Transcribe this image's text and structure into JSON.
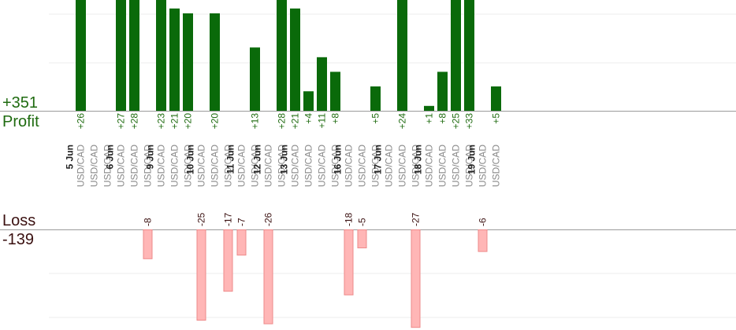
{
  "chart_data": {
    "type": "bar",
    "profit_total": "+351",
    "profit_label": "Profit",
    "loss_label": "Loss",
    "loss_total": "-139",
    "colors": {
      "profit": "#0a6a0a",
      "loss": "#ffb6b6",
      "loss_edge": "#ee8a8a",
      "profit_text": "#1f6b10",
      "loss_text": "#3a1010",
      "axis_text_date": "#222222",
      "axis_text_pair": "#888888"
    },
    "trades": [
      {
        "date": "5 Jun",
        "pair": "USD/CAD",
        "profit": 26
      },
      {
        "date": "",
        "pair": "USD/CAD",
        "profit": null
      },
      {
        "date": "",
        "pair": "USD/CAD",
        "profit": null
      },
      {
        "date": "6 Jun",
        "pair": "USD/CAD",
        "profit": 27
      },
      {
        "date": "",
        "pair": "USD/CAD",
        "profit": 28
      },
      {
        "date": "",
        "pair": "USD/CAD",
        "loss": -8
      },
      {
        "date": "9 Jun",
        "pair": "USD/CAD",
        "profit": 23
      },
      {
        "date": "",
        "pair": "USD/CAD",
        "profit": 21
      },
      {
        "date": "",
        "pair": "USD/CAD",
        "profit": 20
      },
      {
        "date": "10 Jun",
        "pair": "USD/CAD",
        "loss": -25
      },
      {
        "date": "",
        "pair": "USD/CAD",
        "profit": 20
      },
      {
        "date": "",
        "pair": "USD/CAD",
        "loss": -17
      },
      {
        "date": "11 Jun",
        "pair": "USD/CAD",
        "loss": -7
      },
      {
        "date": "",
        "pair": "USD/CAD",
        "profit": 13
      },
      {
        "date": "12 Jun",
        "pair": "USD/CAD",
        "loss": -26
      },
      {
        "date": "",
        "pair": "USD/CAD",
        "profit": 28
      },
      {
        "date": "13 Jun",
        "pair": "USD/CAD",
        "profit": 21
      },
      {
        "date": "",
        "pair": "USD/CAD",
        "profit": 4
      },
      {
        "date": "",
        "pair": "USD/CAD",
        "profit": 11
      },
      {
        "date": "",
        "pair": "USD/CAD",
        "profit": 8
      },
      {
        "date": "16 Jun",
        "pair": "USD/CAD",
        "loss": -18
      },
      {
        "date": "",
        "pair": "USD/CAD",
        "loss": -5
      },
      {
        "date": "",
        "pair": "USD/CAD",
        "profit": 5
      },
      {
        "date": "17 Jun",
        "pair": "USD/CAD",
        "profit": null
      },
      {
        "date": "",
        "pair": "USD/CAD",
        "profit": 24
      },
      {
        "date": "",
        "pair": "USD/CAD",
        "loss": -27
      },
      {
        "date": "18 Jun",
        "pair": "USD/CAD",
        "profit": 1
      },
      {
        "date": "",
        "pair": "USD/CAD",
        "profit": 8
      },
      {
        "date": "",
        "pair": "USD/CAD",
        "profit": 25
      },
      {
        "date": "",
        "pair": "USD/CAD",
        "profit": 33
      },
      {
        "date": "19 Jun",
        "pair": "USD/CAD",
        "loss": -6
      },
      {
        "date": "",
        "pair": "USD/CAD",
        "profit": 5
      }
    ]
  }
}
